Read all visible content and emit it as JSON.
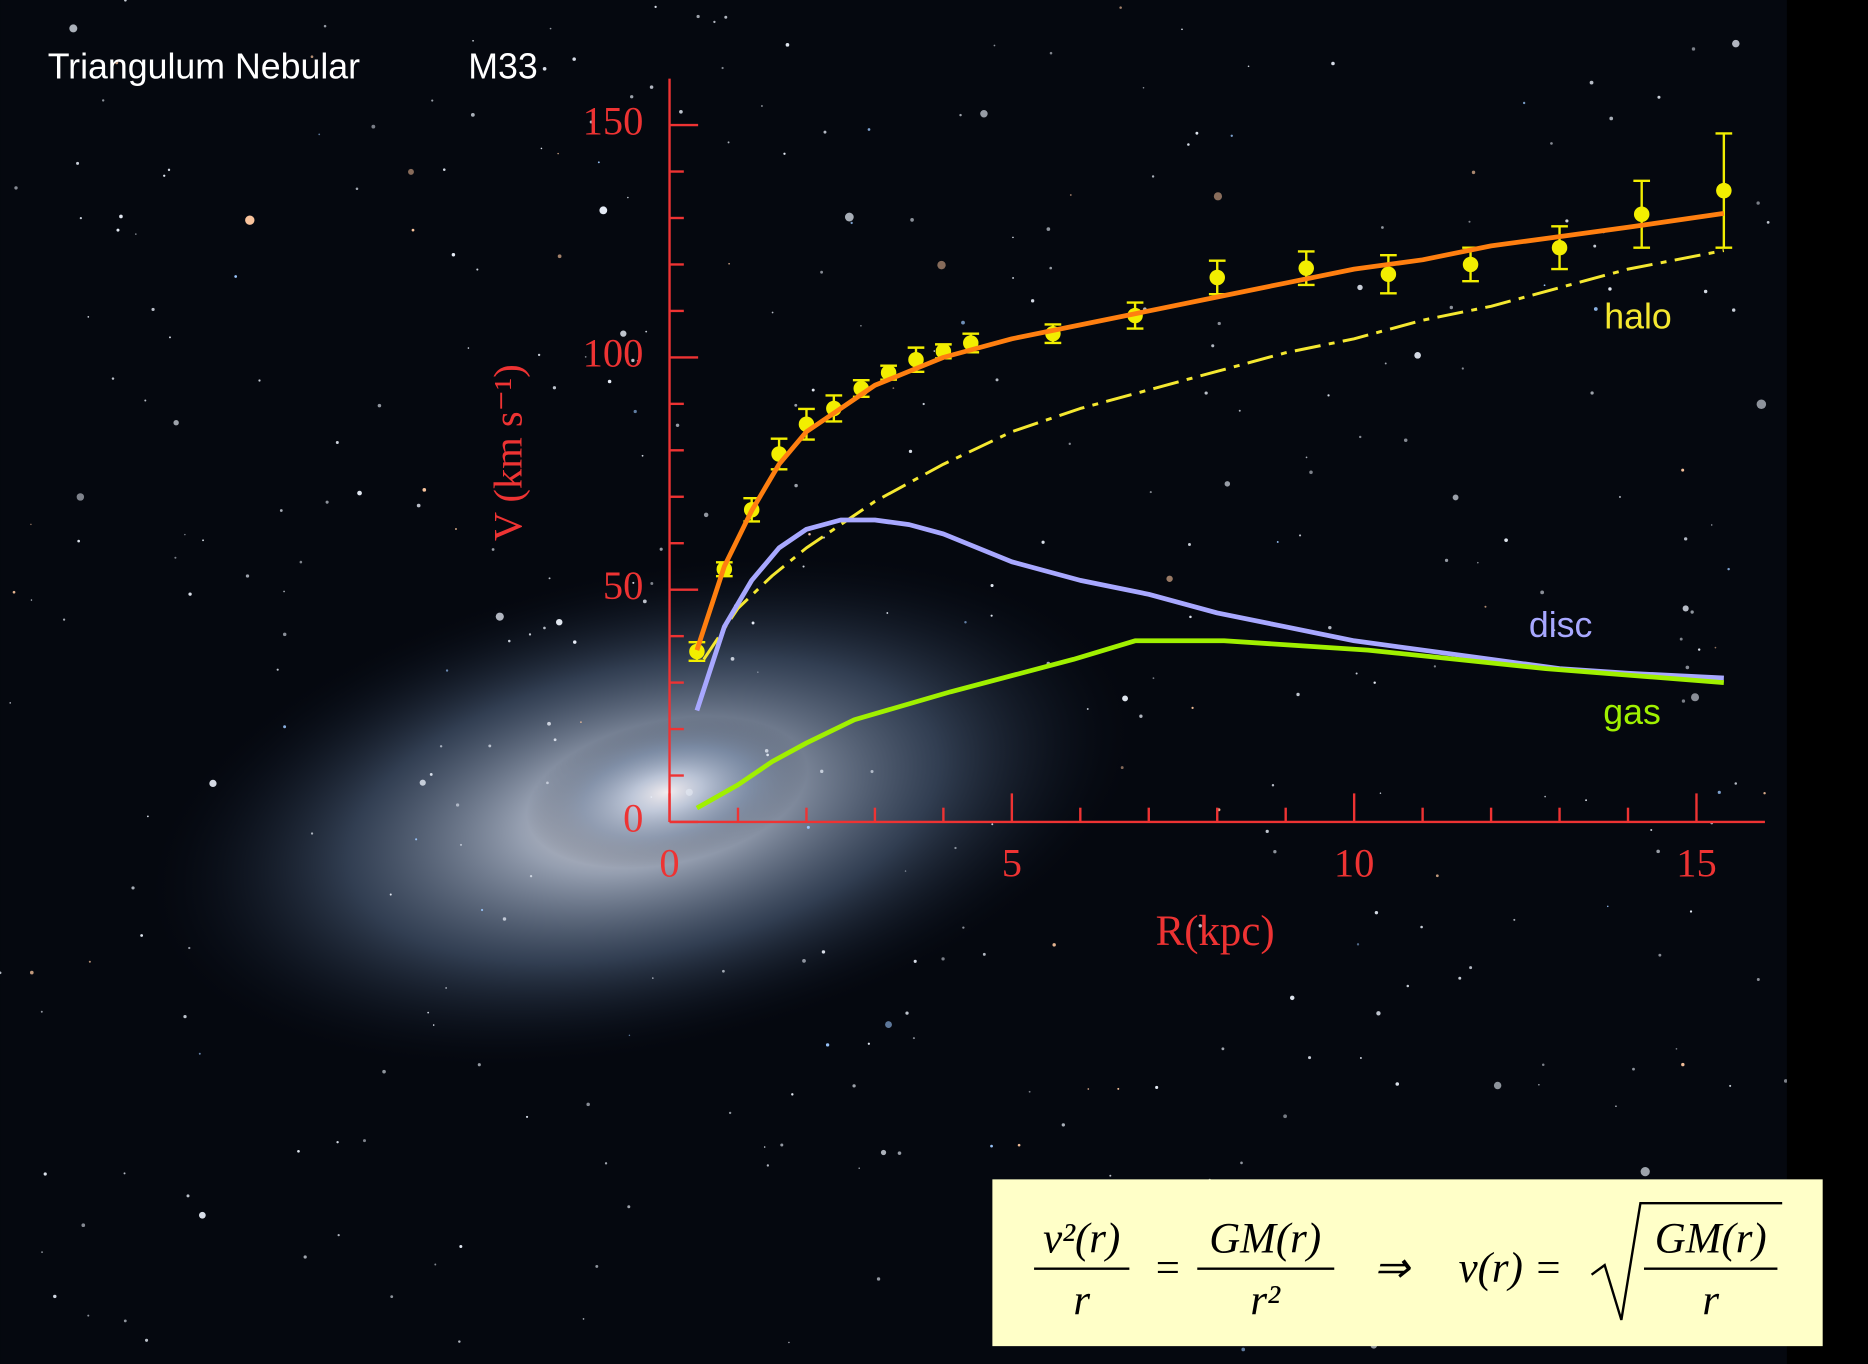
{
  "chart_data": {
    "type": "line",
    "title": "Triangulum Nebular",
    "subtitle": "M33",
    "xlabel": "R(kpc)",
    "ylabel": "V (km s⁻¹)",
    "xlim": [
      0,
      16
    ],
    "ylim": [
      0,
      160
    ],
    "xticks": [
      0,
      5,
      10,
      15
    ],
    "yticks": [
      0,
      50,
      100,
      150
    ],
    "xticks_minor": [
      1,
      2,
      3,
      4,
      6,
      7,
      8,
      9,
      11,
      12,
      13,
      14
    ],
    "yticks_minor": [
      10,
      20,
      30,
      40,
      60,
      70,
      80,
      90,
      110,
      120,
      130,
      140
    ],
    "axis_color": "#ee3333",
    "series": [
      {
        "color": "#f2ee00",
        "marker": true,
        "x": [
          0.4,
          0.8,
          1.2,
          1.6,
          2.0,
          2.4,
          2.8,
          3.2,
          3.6,
          4.0,
          4.4,
          5.6,
          6.8,
          8.0,
          9.3,
          10.5,
          11.7,
          13.0,
          14.2,
          15.4
        ],
        "values": [
          36.7,
          54.4,
          67.2,
          79.2,
          85.6,
          89.0,
          93.3,
          96.7,
          99.5,
          101.3,
          103.1,
          105.1,
          109.0,
          117.2,
          119.2,
          117.9,
          120.0,
          123.6,
          130.8,
          135.9
        ],
        "errors": [
          2.0,
          1.5,
          2.5,
          3.3,
          3.3,
          2.8,
          1.8,
          1.5,
          2.6,
          1.5,
          2.0,
          2.0,
          2.8,
          3.6,
          3.6,
          4.1,
          3.6,
          4.6,
          7.2,
          12.3
        ]
      },
      {
        "color": "#ff7f10",
        "x": [
          0.4,
          0.8,
          1.2,
          1.6,
          2,
          2.5,
          3,
          3.5,
          4,
          5,
          6,
          7,
          8,
          9,
          10,
          11,
          12,
          13,
          14,
          15.4
        ],
        "values": [
          37,
          55,
          67,
          77,
          84,
          89,
          94,
          97,
          100,
          104,
          107,
          110,
          113,
          116,
          119,
          121,
          124,
          126,
          128,
          131
        ]
      },
      {
        "name": "halo",
        "color": "#f5e830",
        "dash": true,
        "x": [
          0.5,
          1,
          1.5,
          2,
          3,
          4,
          5,
          6,
          7,
          8,
          9,
          10,
          11,
          12,
          13,
          14,
          15.4
        ],
        "values": [
          35,
          46,
          53,
          59,
          69,
          77,
          84,
          89,
          93,
          97,
          101,
          104,
          108,
          111,
          115,
          119,
          123
        ]
      },
      {
        "name": "disc",
        "color": "#a8a8ff",
        "x": [
          0.4,
          0.8,
          1.2,
          1.6,
          2,
          2.5,
          3,
          3.5,
          4,
          5,
          6,
          7,
          8,
          9,
          10,
          11,
          12,
          13,
          14,
          15.4
        ],
        "values": [
          24,
          42,
          52,
          59,
          63,
          65,
          65,
          64,
          62,
          56,
          52,
          49,
          45,
          42,
          39,
          37,
          35,
          33,
          32,
          31
        ]
      },
      {
        "name": "gas",
        "color": "#a0f000",
        "x": [
          0.4,
          1,
          1.5,
          2,
          2.7,
          4.1,
          5.9,
          6.8,
          8.1,
          10.2,
          12.8,
          15.4
        ],
        "values": [
          3,
          8,
          13,
          17,
          22,
          28,
          35,
          39,
          39,
          37,
          33,
          30
        ]
      }
    ],
    "formula": {
      "lhs_num": "v²(r)",
      "lhs_den": "r",
      "eq": "=",
      "rhs_num": "GM(r)",
      "rhs_den": "r²",
      "implies": "⇒",
      "result": "v(r) =",
      "sqrt_num": "GM(r)",
      "sqrt_den": "r"
    }
  }
}
